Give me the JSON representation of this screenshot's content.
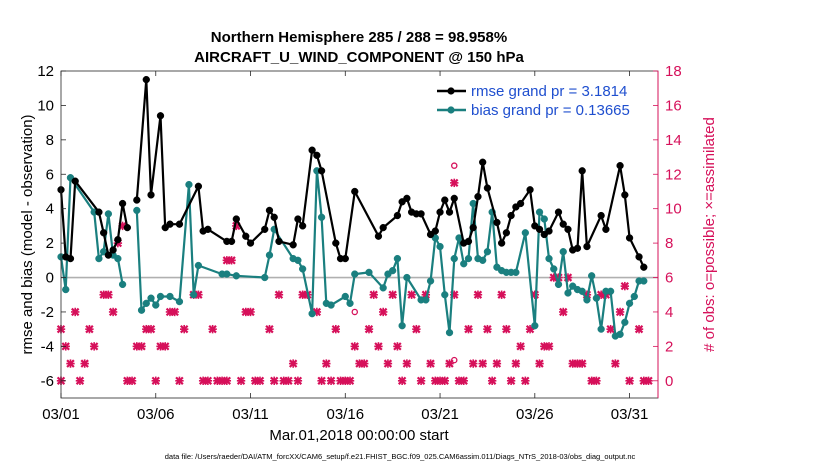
{
  "chart_data": {
    "type": "line",
    "title_line1": "Northern Hemisphere 285 / 288 = 98.958%",
    "title_line2": "AIRCRAFT_U_WIND_COMPONENT @ 150 hPa",
    "xlabel": "Mar.01,2018 00:00:00 start",
    "ylabel_left": "rmse and bias (model - observation)",
    "ylabel_right": "# of obs: o=possible; ×=assimilated",
    "footer": "data file: /Users/raeder/DAI/ATM_forcXX/CAM6_setup/f.e21.FHIST_BGC.f09_025.CAM6assim.011/Diags_NTrS_2018-03/obs_diag_output.nc",
    "xlim": [
      0,
      31.5
    ],
    "ylim_left": [
      -7,
      12
    ],
    "ylim_right": [
      -1,
      18
    ],
    "x_ticks": [
      0,
      5,
      10,
      15,
      20,
      25,
      30
    ],
    "x_tick_labels": [
      "03/01",
      "03/06",
      "03/11",
      "03/16",
      "03/21",
      "03/26",
      "03/31"
    ],
    "y_ticks_left": [
      -6,
      -4,
      -2,
      0,
      2,
      4,
      6,
      8,
      10,
      12
    ],
    "y_tick_labels_left": [
      "-6",
      "-4",
      "-2",
      "0",
      "2",
      "4",
      "6",
      "8",
      "10",
      "12"
    ],
    "y_ticks_right": [
      0,
      2,
      4,
      6,
      8,
      10,
      12,
      14,
      16,
      18
    ],
    "y_tick_labels_right": [
      "0",
      "2",
      "4",
      "6",
      "8",
      "10",
      "12",
      "14",
      "16",
      "18"
    ],
    "colors": {
      "rmse": "#000000",
      "bias": "#1a7f7f",
      "obs": "#d6105a",
      "zero_line": "#b0b0b0",
      "legend_text": "#1f4fcf"
    },
    "series": [
      {
        "name": "rmse grand pr = 3.1814",
        "points": [
          [
            0.0,
            5.1
          ],
          [
            0.25,
            1.2
          ],
          [
            0.5,
            1.1
          ],
          [
            0.75,
            5.6
          ],
          [
            2.0,
            3.8
          ],
          [
            2.25,
            2.6
          ],
          [
            2.5,
            1.3
          ],
          [
            2.75,
            1.6
          ],
          [
            3.0,
            2.2
          ],
          [
            3.25,
            4.3
          ],
          [
            3.5,
            2.9
          ],
          null,
          [
            4.0,
            4.5
          ],
          [
            4.5,
            11.5
          ],
          [
            4.75,
            4.8
          ],
          [
            5.25,
            9.4
          ],
          [
            5.5,
            2.9
          ],
          [
            5.75,
            3.1
          ],
          [
            6.25,
            3.1
          ],
          [
            7.25,
            5.3
          ],
          [
            7.5,
            2.7
          ],
          [
            7.75,
            2.8
          ],
          [
            8.75,
            2.1
          ],
          [
            9.0,
            2.1
          ],
          [
            9.25,
            3.4
          ],
          [
            9.75,
            2.4
          ],
          [
            10.0,
            2.0
          ],
          [
            10.75,
            2.8
          ],
          [
            11.0,
            3.9
          ],
          [
            11.25,
            3.5
          ],
          [
            11.5,
            2.1
          ],
          [
            12.25,
            1.9
          ],
          [
            12.5,
            3.4
          ],
          [
            12.75,
            3.0
          ],
          [
            13.25,
            7.4
          ],
          [
            13.5,
            7.1
          ],
          [
            13.75,
            6.2
          ],
          [
            14.5,
            2.0
          ],
          [
            14.75,
            1.1
          ],
          [
            15.0,
            1.1
          ],
          [
            15.5,
            5.0
          ],
          [
            16.75,
            2.4
          ],
          [
            17.0,
            2.9
          ],
          [
            17.75,
            3.6
          ],
          [
            18.0,
            4.4
          ],
          [
            18.25,
            4.6
          ],
          [
            18.5,
            3.8
          ],
          [
            18.75,
            3.7
          ],
          [
            19.0,
            3.7
          ],
          [
            19.5,
            2.5
          ],
          [
            19.75,
            2.7
          ],
          [
            20.0,
            3.8
          ],
          [
            20.25,
            4.5
          ],
          [
            20.5,
            3.8
          ],
          [
            20.75,
            4.6
          ],
          [
            21.25,
            2.0
          ],
          [
            21.5,
            2.1
          ],
          [
            21.75,
            2.9
          ],
          [
            22.0,
            4.7
          ],
          [
            22.25,
            6.7
          ],
          [
            22.5,
            5.2
          ],
          [
            23.0,
            3.2
          ],
          [
            23.25,
            2.0
          ],
          [
            23.5,
            2.6
          ],
          [
            23.75,
            3.6
          ],
          [
            24.0,
            4.1
          ],
          [
            24.25,
            4.3
          ],
          [
            24.75,
            5.1
          ],
          [
            25.0,
            3.0
          ],
          [
            25.25,
            2.8
          ],
          [
            25.5,
            2.5
          ],
          [
            25.75,
            2.7
          ],
          [
            26.25,
            3.8
          ],
          [
            26.5,
            3.1
          ],
          [
            26.75,
            2.8
          ],
          [
            27.0,
            1.6
          ],
          [
            27.25,
            1.7
          ],
          [
            27.5,
            6.2
          ],
          [
            27.75,
            1.8
          ],
          [
            28.5,
            3.6
          ],
          [
            28.75,
            2.8
          ],
          [
            29.5,
            6.5
          ],
          [
            29.75,
            4.8
          ],
          [
            30.0,
            2.3
          ],
          [
            30.5,
            1.2
          ],
          [
            30.75,
            0.6
          ]
        ]
      },
      {
        "name": "bias grand pr = 0.13665",
        "points": [
          [
            0.0,
            1.2
          ],
          [
            0.25,
            -0.7
          ],
          [
            0.5,
            5.8
          ],
          [
            1.75,
            3.8
          ],
          [
            2.0,
            1.1
          ],
          [
            2.25,
            1.5
          ],
          [
            2.5,
            3.7
          ],
          [
            2.75,
            1.3
          ],
          [
            3.0,
            1.1
          ],
          [
            3.25,
            -0.4
          ],
          null,
          [
            4.0,
            3.9
          ],
          [
            4.25,
            -1.9
          ],
          [
            4.5,
            -1.5
          ],
          [
            4.75,
            -1.2
          ],
          [
            5.0,
            -1.6
          ],
          [
            5.25,
            -1.1
          ],
          [
            5.75,
            -1.1
          ],
          [
            6.25,
            -1.4
          ],
          [
            6.75,
            5.4
          ],
          [
            7.0,
            -1.0
          ],
          [
            7.25,
            0.7
          ],
          [
            8.5,
            0.2
          ],
          [
            8.75,
            0.2
          ],
          [
            9.25,
            0.1
          ],
          [
            10.75,
            0.0
          ],
          [
            11.0,
            1.3
          ],
          [
            11.25,
            2.8
          ],
          [
            12.25,
            1.1
          ],
          [
            12.5,
            1.0
          ],
          [
            12.75,
            0.5
          ],
          [
            13.25,
            -2.1
          ],
          [
            13.5,
            6.2
          ],
          [
            13.75,
            3.5
          ],
          [
            14.0,
            -1.5
          ],
          [
            14.25,
            -1.6
          ],
          [
            15.0,
            -1.1
          ],
          [
            15.25,
            -1.5
          ],
          [
            15.5,
            0.2
          ],
          [
            16.25,
            0.3
          ],
          [
            17.0,
            -0.6
          ],
          [
            17.25,
            0.2
          ],
          [
            17.5,
            0.4
          ],
          [
            17.75,
            1.1
          ],
          [
            18.0,
            -2.8
          ],
          [
            18.25,
            0.0
          ],
          [
            19.0,
            -1.3
          ],
          [
            19.25,
            -1.3
          ],
          [
            19.5,
            -0.2
          ],
          [
            19.75,
            2.3
          ],
          [
            20.0,
            1.8
          ],
          [
            20.25,
            -1.0
          ],
          [
            20.5,
            -3.2
          ],
          [
            20.75,
            1.1
          ],
          [
            21.0,
            2.3
          ],
          [
            21.25,
            0.8
          ],
          [
            21.5,
            1.1
          ],
          [
            21.75,
            4.3
          ],
          [
            22.0,
            1.1
          ],
          [
            22.25,
            1.0
          ],
          [
            22.5,
            1.5
          ],
          [
            22.75,
            3.8
          ],
          [
            23.0,
            0.6
          ],
          [
            23.25,
            0.4
          ],
          [
            23.5,
            0.3
          ],
          [
            23.75,
            0.3
          ],
          [
            24.0,
            0.3
          ],
          [
            24.5,
            2.6
          ],
          [
            25.0,
            -2.8
          ],
          [
            25.25,
            3.8
          ],
          [
            25.5,
            3.4
          ],
          [
            25.75,
            1.1
          ],
          [
            26.0,
            0.5
          ],
          [
            26.25,
            -0.4
          ],
          [
            26.5,
            1.5
          ],
          [
            26.75,
            -0.9
          ],
          [
            27.0,
            -0.5
          ],
          [
            27.25,
            -0.7
          ],
          [
            27.5,
            -0.8
          ],
          [
            27.75,
            -1.3
          ],
          [
            28.0,
            0.1
          ],
          [
            28.25,
            -1.2
          ],
          [
            28.5,
            -3.0
          ],
          [
            28.75,
            -0.8
          ],
          [
            29.0,
            -0.8
          ],
          [
            29.25,
            -3.4
          ],
          [
            29.5,
            -3.3
          ],
          [
            29.75,
            -2.6
          ],
          [
            30.0,
            -1.5
          ],
          [
            30.25,
            -1.1
          ],
          [
            30.5,
            -0.2
          ],
          [
            30.75,
            -0.2
          ]
        ]
      },
      {
        "name": "# of obs assimilated",
        "axis": "right",
        "marker": "x",
        "points": [
          [
            0.0,
            0
          ],
          [
            0.0,
            3
          ],
          [
            0.25,
            2
          ],
          [
            0.5,
            1
          ],
          [
            0.75,
            4
          ],
          [
            1.0,
            0
          ],
          [
            1.25,
            1
          ],
          [
            1.5,
            3
          ],
          [
            1.75,
            2
          ],
          [
            2.25,
            5
          ],
          [
            2.5,
            5
          ],
          [
            2.75,
            4
          ],
          [
            3.0,
            8
          ],
          [
            3.25,
            9
          ],
          [
            3.5,
            0
          ],
          [
            3.75,
            0
          ],
          [
            4.0,
            2
          ],
          [
            4.25,
            2
          ],
          [
            4.5,
            3
          ],
          [
            4.75,
            3
          ],
          [
            5.0,
            0
          ],
          [
            5.25,
            2
          ],
          [
            5.5,
            2
          ],
          [
            5.75,
            4
          ],
          [
            6.0,
            4
          ],
          [
            6.25,
            0
          ],
          [
            6.5,
            3
          ],
          [
            7.0,
            5
          ],
          [
            7.25,
            5
          ],
          [
            7.5,
            0
          ],
          [
            7.75,
            0
          ],
          [
            8.0,
            3
          ],
          [
            8.25,
            0
          ],
          [
            8.5,
            0
          ],
          [
            8.75,
            0
          ],
          [
            8.75,
            7
          ],
          [
            9.0,
            7
          ],
          [
            9.25,
            9
          ],
          [
            9.5,
            0
          ],
          [
            9.75,
            4
          ],
          [
            10.0,
            4
          ],
          [
            10.25,
            0
          ],
          [
            10.5,
            0
          ],
          [
            11.0,
            3
          ],
          [
            11.25,
            0
          ],
          [
            11.5,
            5
          ],
          [
            11.75,
            0
          ],
          [
            12.0,
            0
          ],
          [
            12.25,
            1
          ],
          [
            12.5,
            0
          ],
          [
            12.75,
            5
          ],
          [
            13.0,
            5
          ],
          [
            13.5,
            4
          ],
          [
            13.75,
            0
          ],
          [
            14.0,
            1
          ],
          [
            14.25,
            0
          ],
          [
            14.5,
            3
          ],
          [
            14.75,
            0
          ],
          [
            15.0,
            0
          ],
          [
            15.25,
            0
          ],
          [
            15.5,
            2
          ],
          [
            15.75,
            1
          ],
          [
            16.0,
            1
          ],
          [
            16.25,
            3
          ],
          [
            16.5,
            5
          ],
          [
            16.75,
            2
          ],
          [
            17.0,
            4
          ],
          [
            17.25,
            1
          ],
          [
            17.5,
            5
          ],
          [
            17.75,
            2
          ],
          [
            18.0,
            0
          ],
          [
            18.25,
            1
          ],
          [
            18.5,
            5
          ],
          [
            18.75,
            3
          ],
          [
            19.0,
            0
          ],
          [
            19.25,
            5
          ],
          [
            19.5,
            1
          ],
          [
            19.75,
            0
          ],
          [
            20.0,
            0
          ],
          [
            20.25,
            0
          ],
          [
            20.5,
            1
          ],
          [
            20.75,
            11.5
          ],
          [
            20.75,
            5
          ],
          [
            21.0,
            0
          ],
          [
            21.25,
            0
          ],
          [
            21.5,
            3
          ],
          [
            21.75,
            1
          ],
          [
            22.0,
            5
          ],
          [
            22.25,
            1
          ],
          [
            22.5,
            3
          ],
          [
            22.75,
            0
          ],
          [
            23.0,
            1
          ],
          [
            23.25,
            5
          ],
          [
            23.5,
            3
          ],
          [
            23.75,
            0
          ],
          [
            24.0,
            1
          ],
          [
            24.25,
            2
          ],
          [
            24.5,
            0
          ],
          [
            24.75,
            3
          ],
          [
            25.0,
            5
          ],
          [
            25.25,
            1
          ],
          [
            25.5,
            2
          ],
          [
            25.75,
            2
          ],
          [
            26.0,
            6
          ],
          [
            26.25,
            6
          ],
          [
            26.5,
            4
          ],
          [
            26.75,
            6
          ],
          [
            27.0,
            1
          ],
          [
            27.25,
            1
          ],
          [
            27.5,
            1
          ],
          [
            27.75,
            5
          ],
          [
            28.0,
            0
          ],
          [
            28.25,
            0
          ],
          [
            28.5,
            5
          ],
          [
            28.75,
            5
          ],
          [
            29.0,
            3
          ],
          [
            29.25,
            1
          ],
          [
            29.5,
            4
          ],
          [
            29.75,
            5.5
          ],
          [
            30.0,
            0
          ],
          [
            30.5,
            3
          ],
          [
            30.75,
            0
          ],
          [
            31.0,
            0
          ]
        ]
      },
      {
        "name": "# of obs possible",
        "axis": "right",
        "marker": "o",
        "points": [
          [
            15.5,
            4
          ],
          [
            20.75,
            12.5
          ],
          [
            20.75,
            1.2
          ]
        ]
      }
    ]
  }
}
